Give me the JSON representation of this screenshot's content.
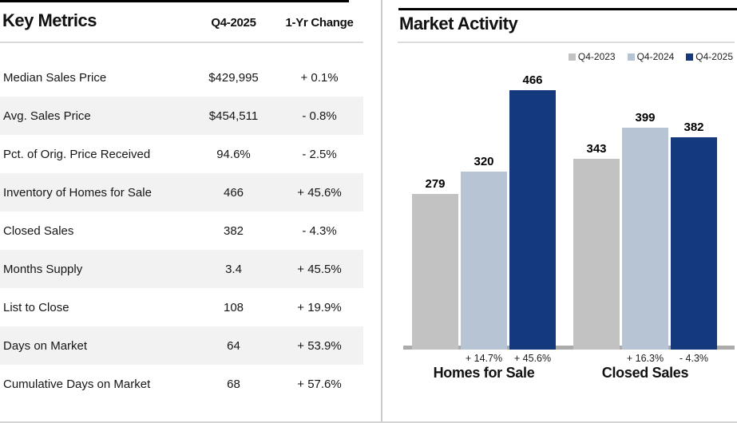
{
  "key_metrics": {
    "title": "Key Metrics",
    "col_current": "Q4-2025",
    "col_change": "1-Yr Change",
    "rows": [
      {
        "label": "Median Sales Price",
        "value": "$429,995",
        "change": "+ 0.1%"
      },
      {
        "label": "Avg. Sales Price",
        "value": "$454,511",
        "change": "- 0.8%"
      },
      {
        "label": "Pct. of Orig. Price Received",
        "value": "94.6%",
        "change": "- 2.5%"
      },
      {
        "label": "Inventory of Homes for Sale",
        "value": "466",
        "change": "+ 45.6%"
      },
      {
        "label": "Closed Sales",
        "value": "382",
        "change": "- 4.3%"
      },
      {
        "label": "Months Supply",
        "value": "3.4",
        "change": "+ 45.5%"
      },
      {
        "label": "List to Close",
        "value": "108",
        "change": "+ 19.9%"
      },
      {
        "label": "Days on Market",
        "value": "64",
        "change": "+ 53.9%"
      },
      {
        "label": "Cumulative Days on Market",
        "value": "68",
        "change": "+ 57.6%"
      }
    ]
  },
  "chart_data": {
    "type": "bar",
    "title": "Market Activity",
    "legend_position": "top-right",
    "grid": false,
    "ylim": [
      0,
      466
    ],
    "series": [
      {
        "name": "Q4-2023",
        "color": "#c2c2c2"
      },
      {
        "name": "Q4-2024",
        "color": "#b6c4d3"
      },
      {
        "name": "Q4-2025",
        "color": "#15397d"
      }
    ],
    "groups": [
      {
        "label": "Homes for Sale",
        "values": [
          279,
          320,
          466
        ],
        "changes": [
          "",
          "+ 14.7%",
          "+ 45.6%"
        ]
      },
      {
        "label": "Closed Sales",
        "values": [
          343,
          399,
          382
        ],
        "changes": [
          "",
          "+ 16.3%",
          "- 4.3%"
        ]
      }
    ]
  },
  "colors": {
    "stripe": "#f2f2f2",
    "baseline": "#ababab",
    "rule_black": "#000000",
    "rule_gray": "#d9d9d9",
    "divider": "#cccccc"
  }
}
